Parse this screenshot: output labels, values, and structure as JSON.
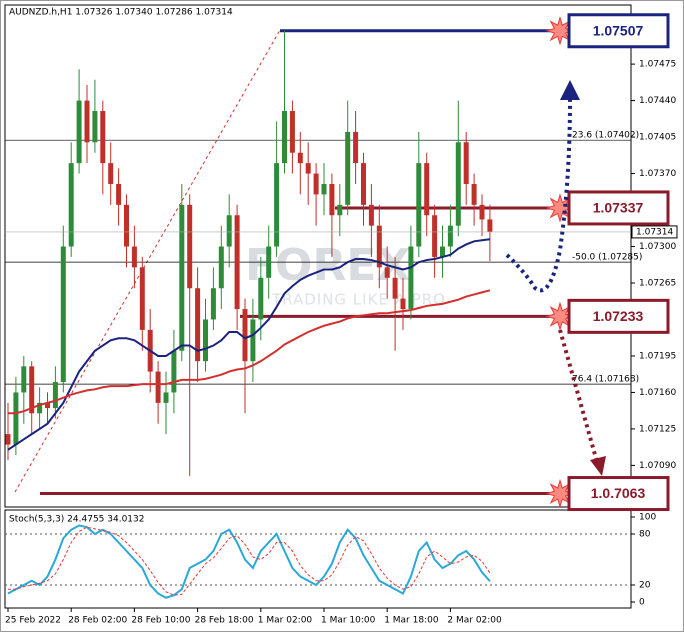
{
  "chart_data": {
    "type": "candlestick",
    "title": "AUDNZD.h,H1 1.07326 1.07340 1.07286 1.07314",
    "watermark": [
      "FOREX",
      "TRADING LIKE A PRO"
    ],
    "categories": [
      "25 Feb 2022",
      null,
      null,
      null,
      null,
      null,
      null,
      null,
      "28 Feb 02:00",
      null,
      null,
      null,
      null,
      null,
      null,
      null,
      "28 Feb 10:00",
      null,
      null,
      null,
      null,
      null,
      null,
      null,
      "28 Feb 18:00",
      null,
      null,
      null,
      null,
      null,
      null,
      null,
      "1 Mar 02:00",
      null,
      null,
      null,
      null,
      null,
      null,
      null,
      "1 Mar 10:00",
      null,
      null,
      null,
      null,
      null,
      null,
      null,
      "1 Mar 18:00",
      null,
      null,
      null,
      null,
      null,
      null,
      null,
      "2 Mar 02:00",
      null,
      null,
      null,
      null,
      null
    ],
    "candles": [
      [
        1.0712,
        1.0715,
        1.07095,
        1.0711
      ],
      [
        1.0711,
        1.07175,
        1.071,
        1.0716
      ],
      [
        1.0716,
        1.07195,
        1.0713,
        1.07185
      ],
      [
        1.07185,
        1.0719,
        1.0712,
        1.0714
      ],
      [
        1.0714,
        1.07165,
        1.07125,
        1.0715
      ],
      [
        1.0715,
        1.0716,
        1.0713,
        1.07145
      ],
      [
        1.07145,
        1.07185,
        1.07135,
        1.0717
      ],
      [
        1.0717,
        1.0732,
        1.0716,
        1.073
      ],
      [
        1.073,
        1.074,
        1.0729,
        1.0738
      ],
      [
        1.0738,
        1.0747,
        1.0737,
        1.0744
      ],
      [
        1.0744,
        1.07455,
        1.0738,
        1.074
      ],
      [
        1.074,
        1.0746,
        1.0739,
        1.0743
      ],
      [
        1.0743,
        1.0744,
        1.0735,
        1.0738
      ],
      [
        1.0738,
        1.074,
        1.0734,
        1.0736
      ],
      [
        1.0736,
        1.07375,
        1.0732,
        1.0734
      ],
      [
        1.0734,
        1.0735,
        1.0728,
        1.073
      ],
      [
        1.073,
        1.0732,
        1.0726,
        1.0728
      ],
      [
        1.0728,
        1.0729,
        1.072,
        1.0722
      ],
      [
        1.0722,
        1.0724,
        1.0716,
        1.0718
      ],
      [
        1.0718,
        1.0719,
        1.0713,
        1.0715
      ],
      [
        1.0715,
        1.0718,
        1.0712,
        1.0716
      ],
      [
        1.0716,
        1.0722,
        1.0714,
        1.072
      ],
      [
        1.072,
        1.0736,
        1.0719,
        1.0734
      ],
      [
        1.0734,
        1.0735,
        1.0708,
        1.0726
      ],
      [
        1.0726,
        1.0728,
        1.0717,
        1.0719
      ],
      [
        1.0719,
        1.0725,
        1.0718,
        1.0723
      ],
      [
        1.0723,
        1.0728,
        1.0722,
        1.0726
      ],
      [
        1.0726,
        1.0732,
        1.0724,
        1.073
      ],
      [
        1.073,
        1.0735,
        1.0728,
        1.0733
      ],
      [
        1.0733,
        1.0734,
        1.0722,
        1.0724
      ],
      [
        1.0724,
        1.0725,
        1.0714,
        1.0719
      ],
      [
        1.0719,
        1.0725,
        1.0717,
        1.0723
      ],
      [
        1.0723,
        1.0729,
        1.0721,
        1.0727
      ],
      [
        1.0727,
        1.0732,
        1.0725,
        1.073
      ],
      [
        1.073,
        1.0742,
        1.0729,
        1.0738
      ],
      [
        1.0738,
        1.07507,
        1.0737,
        1.0743
      ],
      [
        1.0743,
        1.0744,
        1.0737,
        1.0739
      ],
      [
        1.0739,
        1.0741,
        1.0735,
        1.0738
      ],
      [
        1.0738,
        1.074,
        1.0734,
        1.0737
      ],
      [
        1.0737,
        1.0738,
        1.0732,
        1.0735
      ],
      [
        1.0735,
        1.0738,
        1.0733,
        1.0736
      ],
      [
        1.0736,
        1.0737,
        1.0729,
        1.0733
      ],
      [
        1.0733,
        1.0736,
        1.0731,
        1.0734
      ],
      [
        1.0734,
        1.0744,
        1.0733,
        1.0741
      ],
      [
        1.0741,
        1.0743,
        1.0736,
        1.0738
      ],
      [
        1.0738,
        1.0739,
        1.0732,
        1.0734
      ],
      [
        1.0734,
        1.0736,
        1.0729,
        1.0732
      ],
      [
        1.0732,
        1.0734,
        1.0726,
        1.0728
      ],
      [
        1.0728,
        1.073,
        1.0725,
        1.0727
      ],
      [
        1.0727,
        1.0729,
        1.072,
        1.0725
      ],
      [
        1.0725,
        1.0727,
        1.0722,
        1.0724
      ],
      [
        1.0724,
        1.0732,
        1.0723,
        1.073
      ],
      [
        1.073,
        1.0741,
        1.0729,
        1.0738
      ],
      [
        1.0738,
        1.0739,
        1.0731,
        1.0733
      ],
      [
        1.0733,
        1.0734,
        1.0727,
        1.0729
      ],
      [
        1.0729,
        1.0732,
        1.0727,
        1.073
      ],
      [
        1.073,
        1.0734,
        1.0729,
        1.0732
      ],
      [
        1.0732,
        1.0744,
        1.0731,
        1.074
      ],
      [
        1.074,
        1.0741,
        1.0734,
        1.0736
      ],
      [
        1.0736,
        1.0737,
        1.0732,
        1.0734
      ],
      [
        1.0734,
        1.0735,
        1.0731,
        1.07326
      ],
      [
        1.07326,
        1.0734,
        1.07286,
        1.07314
      ]
    ],
    "up_color": "#2e8b3a",
    "down_color": "#c0302a",
    "series": [
      {
        "color": "#1a237e",
        "values": [
          1.07105,
          1.0711,
          1.07115,
          1.0712,
          1.07125,
          1.0713,
          1.0714,
          1.0715,
          1.07165,
          1.0718,
          1.0719,
          1.072,
          1.07205,
          1.0721,
          1.07212,
          1.07212,
          1.0721,
          1.07205,
          1.072,
          1.07195,
          1.07195,
          1.072,
          1.07205,
          1.07205,
          1.072,
          1.07202,
          1.07205,
          1.0721,
          1.07218,
          1.07218,
          1.07212,
          1.07215,
          1.07222,
          1.0723,
          1.07242,
          1.07255,
          1.07262,
          1.07268,
          1.07272,
          1.07275,
          1.07278,
          1.07278,
          1.0728,
          1.07285,
          1.07288,
          1.07288,
          1.07287,
          1.07285,
          1.07282,
          1.0728,
          1.07278,
          1.0728,
          1.07285,
          1.07287,
          1.07288,
          1.0729,
          1.07292,
          1.07298,
          1.07302,
          1.07305,
          1.07306,
          1.07307
        ]
      },
      {
        "color": "#d32f2f",
        "values": [
          1.0714,
          1.0714,
          1.07142,
          1.07145,
          1.07148,
          1.0715,
          1.07152,
          1.07155,
          1.07158,
          1.0716,
          1.07162,
          1.07163,
          1.07165,
          1.07166,
          1.07166,
          1.07166,
          1.07167,
          1.07168,
          1.07168,
          1.07168,
          1.07168,
          1.0717,
          1.07172,
          1.07172,
          1.07172,
          1.07173,
          1.07175,
          1.07177,
          1.0718,
          1.07182,
          1.07183,
          1.07186,
          1.0719,
          1.07195,
          1.072,
          1.07206,
          1.0721,
          1.07214,
          1.07218,
          1.07221,
          1.07224,
          1.07226,
          1.07228,
          1.07231,
          1.07233,
          1.07234,
          1.07235,
          1.07236,
          1.07236,
          1.07237,
          1.07238,
          1.07239,
          1.07241,
          1.07243,
          1.07244,
          1.07245,
          1.07247,
          1.07249,
          1.07252,
          1.07254,
          1.07256,
          1.07258
        ]
      }
    ],
    "ylim": [
      1.07052,
      1.07525
    ],
    "yticks": [
      1.07475,
      {
        "value": 1.0744,
        "label": "1.07440"
      },
      1.07405,
      {
        "value": 1.0737,
        "label": "1.07370"
      },
      {
        "value": 1.073,
        "label": "1.07300"
      },
      1.07265,
      1.07195,
      {
        "value": 1.0716,
        "label": "1.07160"
      },
      1.07125,
      {
        "value": 1.0709,
        "label": "1.07090"
      }
    ],
    "current_price": 1.07314,
    "fib_levels": [
      {
        "label": "23.6 (1.07402)",
        "value": 1.07402
      },
      {
        "label": "-50.0 (1.07285)",
        "value": 1.07285
      },
      {
        "label": "76.4 (1.07168)",
        "value": 1.07168
      }
    ],
    "annotations": [
      {
        "label": "1.07507",
        "value": 1.07507,
        "color": "#1a237e"
      },
      {
        "label": "1.07337",
        "value": 1.07337,
        "color": "#8b1a2b"
      },
      {
        "label": "1.07233",
        "value": 1.07233,
        "color": "#8b1a2b"
      },
      {
        "label": "1.0.7063",
        "value": 1.07063,
        "color": "#8b1a2b"
      }
    ],
    "stoch": {
      "title": "Stoch(5,3,3) 24.4755 34.0132",
      "ylim": [
        0,
        100
      ],
      "yticks": [
        100,
        80,
        20,
        0
      ],
      "series": [
        {
          "color": "#29a8d9",
          "values": [
            10,
            15,
            20,
            25,
            20,
            30,
            50,
            75,
            85,
            90,
            88,
            80,
            85,
            80,
            70,
            60,
            50,
            40,
            20,
            10,
            5,
            8,
            15,
            40,
            45,
            50,
            60,
            80,
            85,
            70,
            50,
            40,
            60,
            70,
            80,
            60,
            40,
            30,
            25,
            20,
            30,
            45,
            70,
            85,
            75,
            55,
            40,
            25,
            20,
            15,
            10,
            30,
            60,
            70,
            50,
            40,
            45,
            55,
            60,
            50,
            35,
            24.4755
          ]
        },
        {
          "color": "#e53935",
          "values": [
            15,
            15,
            18,
            20,
            22,
            25,
            33,
            50,
            70,
            83,
            88,
            86,
            84,
            82,
            78,
            70,
            60,
            50,
            37,
            23,
            12,
            8,
            9,
            21,
            33,
            45,
            52,
            63,
            75,
            78,
            68,
            53,
            50,
            57,
            70,
            70,
            60,
            43,
            32,
            25,
            25,
            32,
            48,
            67,
            77,
            72,
            57,
            40,
            28,
            20,
            15,
            18,
            33,
            53,
            60,
            53,
            45,
            47,
            53,
            55,
            48,
            34.0132
          ]
        }
      ]
    }
  }
}
